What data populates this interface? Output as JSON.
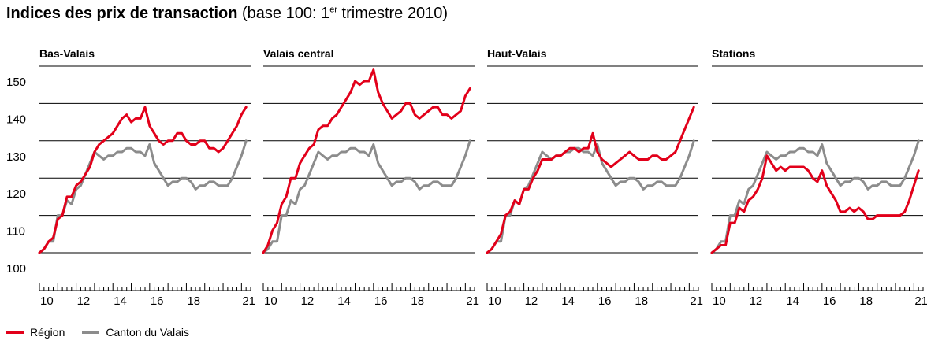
{
  "title": {
    "bold": "Indices des prix de transaction",
    "rest_prefix": " (base 100: 1",
    "rest_sup": "er",
    "rest_suffix": " trimestre 2010)"
  },
  "legend": [
    {
      "label": "Région",
      "color": "#e2001a"
    },
    {
      "label": "Canton du Valais",
      "color": "#8c8c8c"
    }
  ],
  "chart_data": [
    {
      "type": "line",
      "title": "Bas-Valais",
      "x_ticks": [
        "10",
        "12",
        "14",
        "16",
        "18",
        "21"
      ],
      "ylim": [
        100,
        150
      ],
      "y_ticks": [
        100,
        110,
        120,
        130,
        140,
        150
      ],
      "grid": true,
      "series": [
        {
          "name": "Région",
          "color": "#e2001a",
          "x": [
            2010.0,
            2010.25,
            2010.5,
            2010.75,
            2011.0,
            2011.25,
            2011.5,
            2011.75,
            2012.0,
            2012.25,
            2012.5,
            2012.75,
            2013.0,
            2013.25,
            2013.5,
            2013.75,
            2014.0,
            2014.25,
            2014.5,
            2014.75,
            2015.0,
            2015.25,
            2015.5,
            2015.75,
            2016.0,
            2016.25,
            2016.5,
            2016.75,
            2017.0,
            2017.25,
            2017.5,
            2017.75,
            2018.0,
            2018.25,
            2018.5,
            2018.75,
            2019.0,
            2019.25,
            2019.5,
            2019.75,
            2020.0,
            2020.25,
            2020.5,
            2020.75,
            2021.0,
            2021.25
          ],
          "values": [
            100,
            101,
            103,
            104,
            109,
            110,
            115,
            115,
            118,
            119,
            121,
            123,
            127,
            129,
            130,
            131,
            132,
            134,
            136,
            137,
            135,
            136,
            136,
            139,
            134,
            132,
            130,
            129,
            130,
            130,
            132,
            132,
            130,
            129,
            129,
            130,
            130,
            128,
            128,
            127,
            128,
            130,
            132,
            134,
            137,
            139
          ]
        },
        {
          "name": "Canton du Valais",
          "color": "#8c8c8c",
          "x": [
            2010.0,
            2010.25,
            2010.5,
            2010.75,
            2011.0,
            2011.25,
            2011.5,
            2011.75,
            2012.0,
            2012.25,
            2012.5,
            2012.75,
            2013.0,
            2013.25,
            2013.5,
            2013.75,
            2014.0,
            2014.25,
            2014.5,
            2014.75,
            2015.0,
            2015.25,
            2015.5,
            2015.75,
            2016.0,
            2016.25,
            2016.5,
            2016.75,
            2017.0,
            2017.25,
            2017.5,
            2017.75,
            2018.0,
            2018.25,
            2018.5,
            2018.75,
            2019.0,
            2019.25,
            2019.5,
            2019.75,
            2020.0,
            2020.25,
            2020.5,
            2020.75,
            2021.0,
            2021.25
          ],
          "values": [
            100,
            101,
            103,
            103,
            110,
            110,
            114,
            113,
            117,
            118,
            121,
            124,
            127,
            126,
            125,
            126,
            126,
            127,
            127,
            128,
            128,
            127,
            127,
            126,
            129,
            124,
            122,
            120,
            118,
            119,
            119,
            120,
            120,
            119,
            117,
            118,
            118,
            119,
            119,
            118,
            118,
            118,
            120,
            123,
            126,
            130
          ]
        }
      ]
    },
    {
      "type": "line",
      "title": "Valais central",
      "x_ticks": [
        "10",
        "12",
        "14",
        "16",
        "18",
        "21"
      ],
      "ylim": [
        100,
        150
      ],
      "y_ticks": [
        100,
        110,
        120,
        130,
        140,
        150
      ],
      "grid": true,
      "series": [
        {
          "name": "Région",
          "color": "#e2001a",
          "x": [
            2010.0,
            2010.25,
            2010.5,
            2010.75,
            2011.0,
            2011.25,
            2011.5,
            2011.75,
            2012.0,
            2012.25,
            2012.5,
            2012.75,
            2013.0,
            2013.25,
            2013.5,
            2013.75,
            2014.0,
            2014.25,
            2014.5,
            2014.75,
            2015.0,
            2015.25,
            2015.5,
            2015.75,
            2016.0,
            2016.25,
            2016.5,
            2016.75,
            2017.0,
            2017.25,
            2017.5,
            2017.75,
            2018.0,
            2018.25,
            2018.5,
            2018.75,
            2019.0,
            2019.25,
            2019.5,
            2019.75,
            2020.0,
            2020.25,
            2020.5,
            2020.75,
            2021.0,
            2021.25
          ],
          "values": [
            100,
            102,
            106,
            108,
            113,
            115,
            120,
            120,
            124,
            126,
            128,
            129,
            133,
            134,
            134,
            136,
            137,
            139,
            141,
            143,
            146,
            145,
            146,
            146,
            149,
            143,
            140,
            138,
            136,
            137,
            138,
            140,
            140,
            137,
            136,
            137,
            138,
            139,
            139,
            137,
            137,
            136,
            137,
            138,
            142,
            144
          ]
        },
        {
          "name": "Canton du Valais",
          "color": "#8c8c8c",
          "x": [
            2010.0,
            2010.25,
            2010.5,
            2010.75,
            2011.0,
            2011.25,
            2011.5,
            2011.75,
            2012.0,
            2012.25,
            2012.5,
            2012.75,
            2013.0,
            2013.25,
            2013.5,
            2013.75,
            2014.0,
            2014.25,
            2014.5,
            2014.75,
            2015.0,
            2015.25,
            2015.5,
            2015.75,
            2016.0,
            2016.25,
            2016.5,
            2016.75,
            2017.0,
            2017.25,
            2017.5,
            2017.75,
            2018.0,
            2018.25,
            2018.5,
            2018.75,
            2019.0,
            2019.25,
            2019.5,
            2019.75,
            2020.0,
            2020.25,
            2020.5,
            2020.75,
            2021.0,
            2021.25
          ],
          "values": [
            100,
            101,
            103,
            103,
            110,
            110,
            114,
            113,
            117,
            118,
            121,
            124,
            127,
            126,
            125,
            126,
            126,
            127,
            127,
            128,
            128,
            127,
            127,
            126,
            129,
            124,
            122,
            120,
            118,
            119,
            119,
            120,
            120,
            119,
            117,
            118,
            118,
            119,
            119,
            118,
            118,
            118,
            120,
            123,
            126,
            130
          ]
        }
      ]
    },
    {
      "type": "line",
      "title": "Haut-Valais",
      "x_ticks": [
        "10",
        "12",
        "14",
        "16",
        "18",
        "21"
      ],
      "ylim": [
        100,
        150
      ],
      "y_ticks": [
        100,
        110,
        120,
        130,
        140,
        150
      ],
      "grid": true,
      "series": [
        {
          "name": "Région",
          "color": "#e2001a",
          "x": [
            2010.0,
            2010.25,
            2010.5,
            2010.75,
            2011.0,
            2011.25,
            2011.5,
            2011.75,
            2012.0,
            2012.25,
            2012.5,
            2012.75,
            2013.0,
            2013.25,
            2013.5,
            2013.75,
            2014.0,
            2014.25,
            2014.5,
            2014.75,
            2015.0,
            2015.25,
            2015.5,
            2015.75,
            2016.0,
            2016.25,
            2016.5,
            2016.75,
            2017.0,
            2017.25,
            2017.5,
            2017.75,
            2018.0,
            2018.25,
            2018.5,
            2018.75,
            2019.0,
            2019.25,
            2019.5,
            2019.75,
            2020.0,
            2020.25,
            2020.5,
            2020.75,
            2021.0,
            2021.25
          ],
          "values": [
            100,
            101,
            103,
            105,
            110,
            111,
            114,
            113,
            117,
            117,
            120,
            122,
            125,
            125,
            125,
            126,
            126,
            127,
            128,
            128,
            127,
            128,
            128,
            132,
            127,
            125,
            124,
            123,
            124,
            125,
            126,
            127,
            126,
            125,
            125,
            125,
            126,
            126,
            125,
            125,
            126,
            127,
            130,
            133,
            136,
            139
          ]
        },
        {
          "name": "Canton du Valais",
          "color": "#8c8c8c",
          "x": [
            2010.0,
            2010.25,
            2010.5,
            2010.75,
            2011.0,
            2011.25,
            2011.5,
            2011.75,
            2012.0,
            2012.25,
            2012.5,
            2012.75,
            2013.0,
            2013.25,
            2013.5,
            2013.75,
            2014.0,
            2014.25,
            2014.5,
            2014.75,
            2015.0,
            2015.25,
            2015.5,
            2015.75,
            2016.0,
            2016.25,
            2016.5,
            2016.75,
            2017.0,
            2017.25,
            2017.5,
            2017.75,
            2018.0,
            2018.25,
            2018.5,
            2018.75,
            2019.0,
            2019.25,
            2019.5,
            2019.75,
            2020.0,
            2020.25,
            2020.5,
            2020.75,
            2021.0,
            2021.25
          ],
          "values": [
            100,
            101,
            103,
            103,
            110,
            110,
            114,
            113,
            117,
            118,
            121,
            124,
            127,
            126,
            125,
            126,
            126,
            127,
            127,
            128,
            128,
            127,
            127,
            126,
            129,
            124,
            122,
            120,
            118,
            119,
            119,
            120,
            120,
            119,
            117,
            118,
            118,
            119,
            119,
            118,
            118,
            118,
            120,
            123,
            126,
            130
          ]
        }
      ]
    },
    {
      "type": "line",
      "title": "Stations",
      "x_ticks": [
        "10",
        "12",
        "14",
        "16",
        "18",
        "21"
      ],
      "ylim": [
        100,
        150
      ],
      "y_ticks": [
        100,
        110,
        120,
        130,
        140,
        150
      ],
      "grid": true,
      "series": [
        {
          "name": "Région",
          "color": "#e2001a",
          "x": [
            2010.0,
            2010.25,
            2010.5,
            2010.75,
            2011.0,
            2011.25,
            2011.5,
            2011.75,
            2012.0,
            2012.25,
            2012.5,
            2012.75,
            2013.0,
            2013.25,
            2013.5,
            2013.75,
            2014.0,
            2014.25,
            2014.5,
            2014.75,
            2015.0,
            2015.25,
            2015.5,
            2015.75,
            2016.0,
            2016.25,
            2016.5,
            2016.75,
            2017.0,
            2017.25,
            2017.5,
            2017.75,
            2018.0,
            2018.25,
            2018.5,
            2018.75,
            2019.0,
            2019.25,
            2019.5,
            2019.75,
            2020.0,
            2020.25,
            2020.5,
            2020.75,
            2021.0,
            2021.25
          ],
          "values": [
            100,
            101,
            102,
            102,
            108,
            108,
            112,
            111,
            114,
            115,
            117,
            120,
            126,
            124,
            122,
            123,
            122,
            123,
            123,
            123,
            123,
            122,
            120,
            119,
            122,
            118,
            116,
            114,
            111,
            111,
            112,
            111,
            112,
            111,
            109,
            109,
            110,
            110,
            110,
            110,
            110,
            110,
            111,
            114,
            118,
            122
          ]
        },
        {
          "name": "Canton du Valais",
          "color": "#8c8c8c",
          "x": [
            2010.0,
            2010.25,
            2010.5,
            2010.75,
            2011.0,
            2011.25,
            2011.5,
            2011.75,
            2012.0,
            2012.25,
            2012.5,
            2012.75,
            2013.0,
            2013.25,
            2013.5,
            2013.75,
            2014.0,
            2014.25,
            2014.5,
            2014.75,
            2015.0,
            2015.25,
            2015.5,
            2015.75,
            2016.0,
            2016.25,
            2016.5,
            2016.75,
            2017.0,
            2017.25,
            2017.5,
            2017.75,
            2018.0,
            2018.25,
            2018.5,
            2018.75,
            2019.0,
            2019.25,
            2019.5,
            2019.75,
            2020.0,
            2020.25,
            2020.5,
            2020.75,
            2021.0,
            2021.25
          ],
          "values": [
            100,
            101,
            103,
            103,
            110,
            110,
            114,
            113,
            117,
            118,
            121,
            124,
            127,
            126,
            125,
            126,
            126,
            127,
            127,
            128,
            128,
            127,
            127,
            126,
            129,
            124,
            122,
            120,
            118,
            119,
            119,
            120,
            120,
            119,
            117,
            118,
            118,
            119,
            119,
            118,
            118,
            118,
            120,
            123,
            126,
            130
          ]
        }
      ]
    }
  ]
}
